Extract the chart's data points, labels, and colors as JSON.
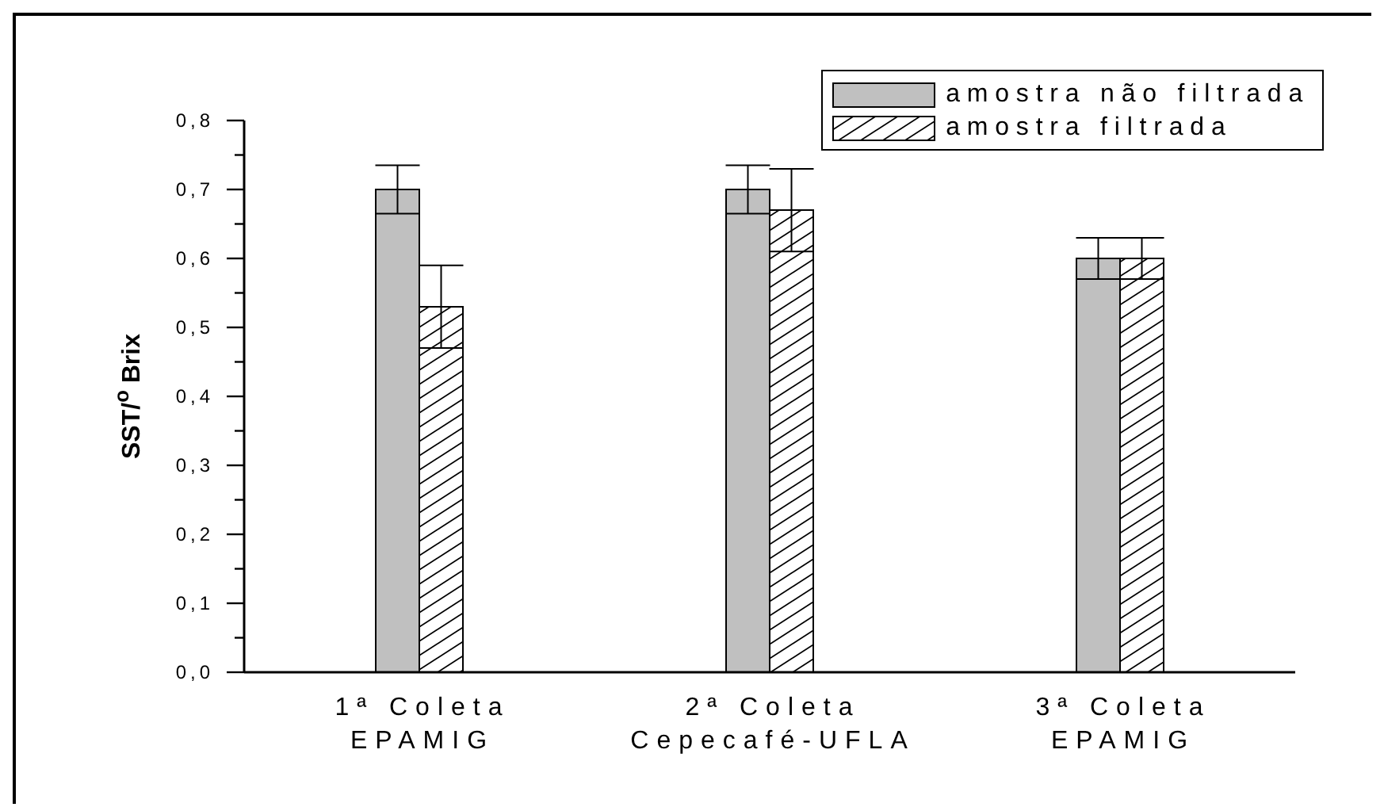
{
  "chart_data": {
    "type": "bar",
    "ylabel": "SST/$^{o}$ Brix",
    "categories": [
      "1ª Coleta\nEPAMIG",
      "2ª Coleta\nCepecafé-UFLA",
      "3ª Coleta\nEPAMIG"
    ],
    "series": [
      {
        "name": "amostra não filtrada",
        "color": "#c0c0c0",
        "values": [
          0.7,
          0.7,
          0.6
        ],
        "errors": [
          0.035,
          0.035,
          0.03
        ]
      },
      {
        "name": "amostra filtrada",
        "color": "#000000",
        "values": [
          0.53,
          0.67,
          0.6
        ],
        "errors": [
          0.06,
          0.06,
          0.03
        ]
      }
    ],
    "ylim": [
      0,
      0.8
    ],
    "yticks": [
      {
        "value": 0,
        "label": "0,0"
      },
      {
        "value": 0.05,
        "label": null
      },
      {
        "value": 0.1,
        "label": "0,1"
      },
      {
        "value": 0.15,
        "label": null
      },
      {
        "value": 0.2,
        "label": "0,2"
      },
      {
        "value": 0.25,
        "label": null
      },
      {
        "value": 0.3,
        "label": "0,3"
      },
      {
        "value": 0.35,
        "label": null
      },
      {
        "value": 0.4,
        "label": "0,4"
      },
      {
        "value": 0.45,
        "label": null
      },
      {
        "value": 0.5,
        "label": "0,5"
      },
      {
        "value": 0.55,
        "label": null
      },
      {
        "value": 0.6,
        "label": "0,6"
      },
      {
        "value": 0.65,
        "label": null
      },
      {
        "value": 0.7,
        "label": "0,7"
      },
      {
        "value": 0.75,
        "label": null
      },
      {
        "value": 0.8,
        "label": "0,8"
      }
    ],
    "legend": "top right",
    "grid": false
  }
}
